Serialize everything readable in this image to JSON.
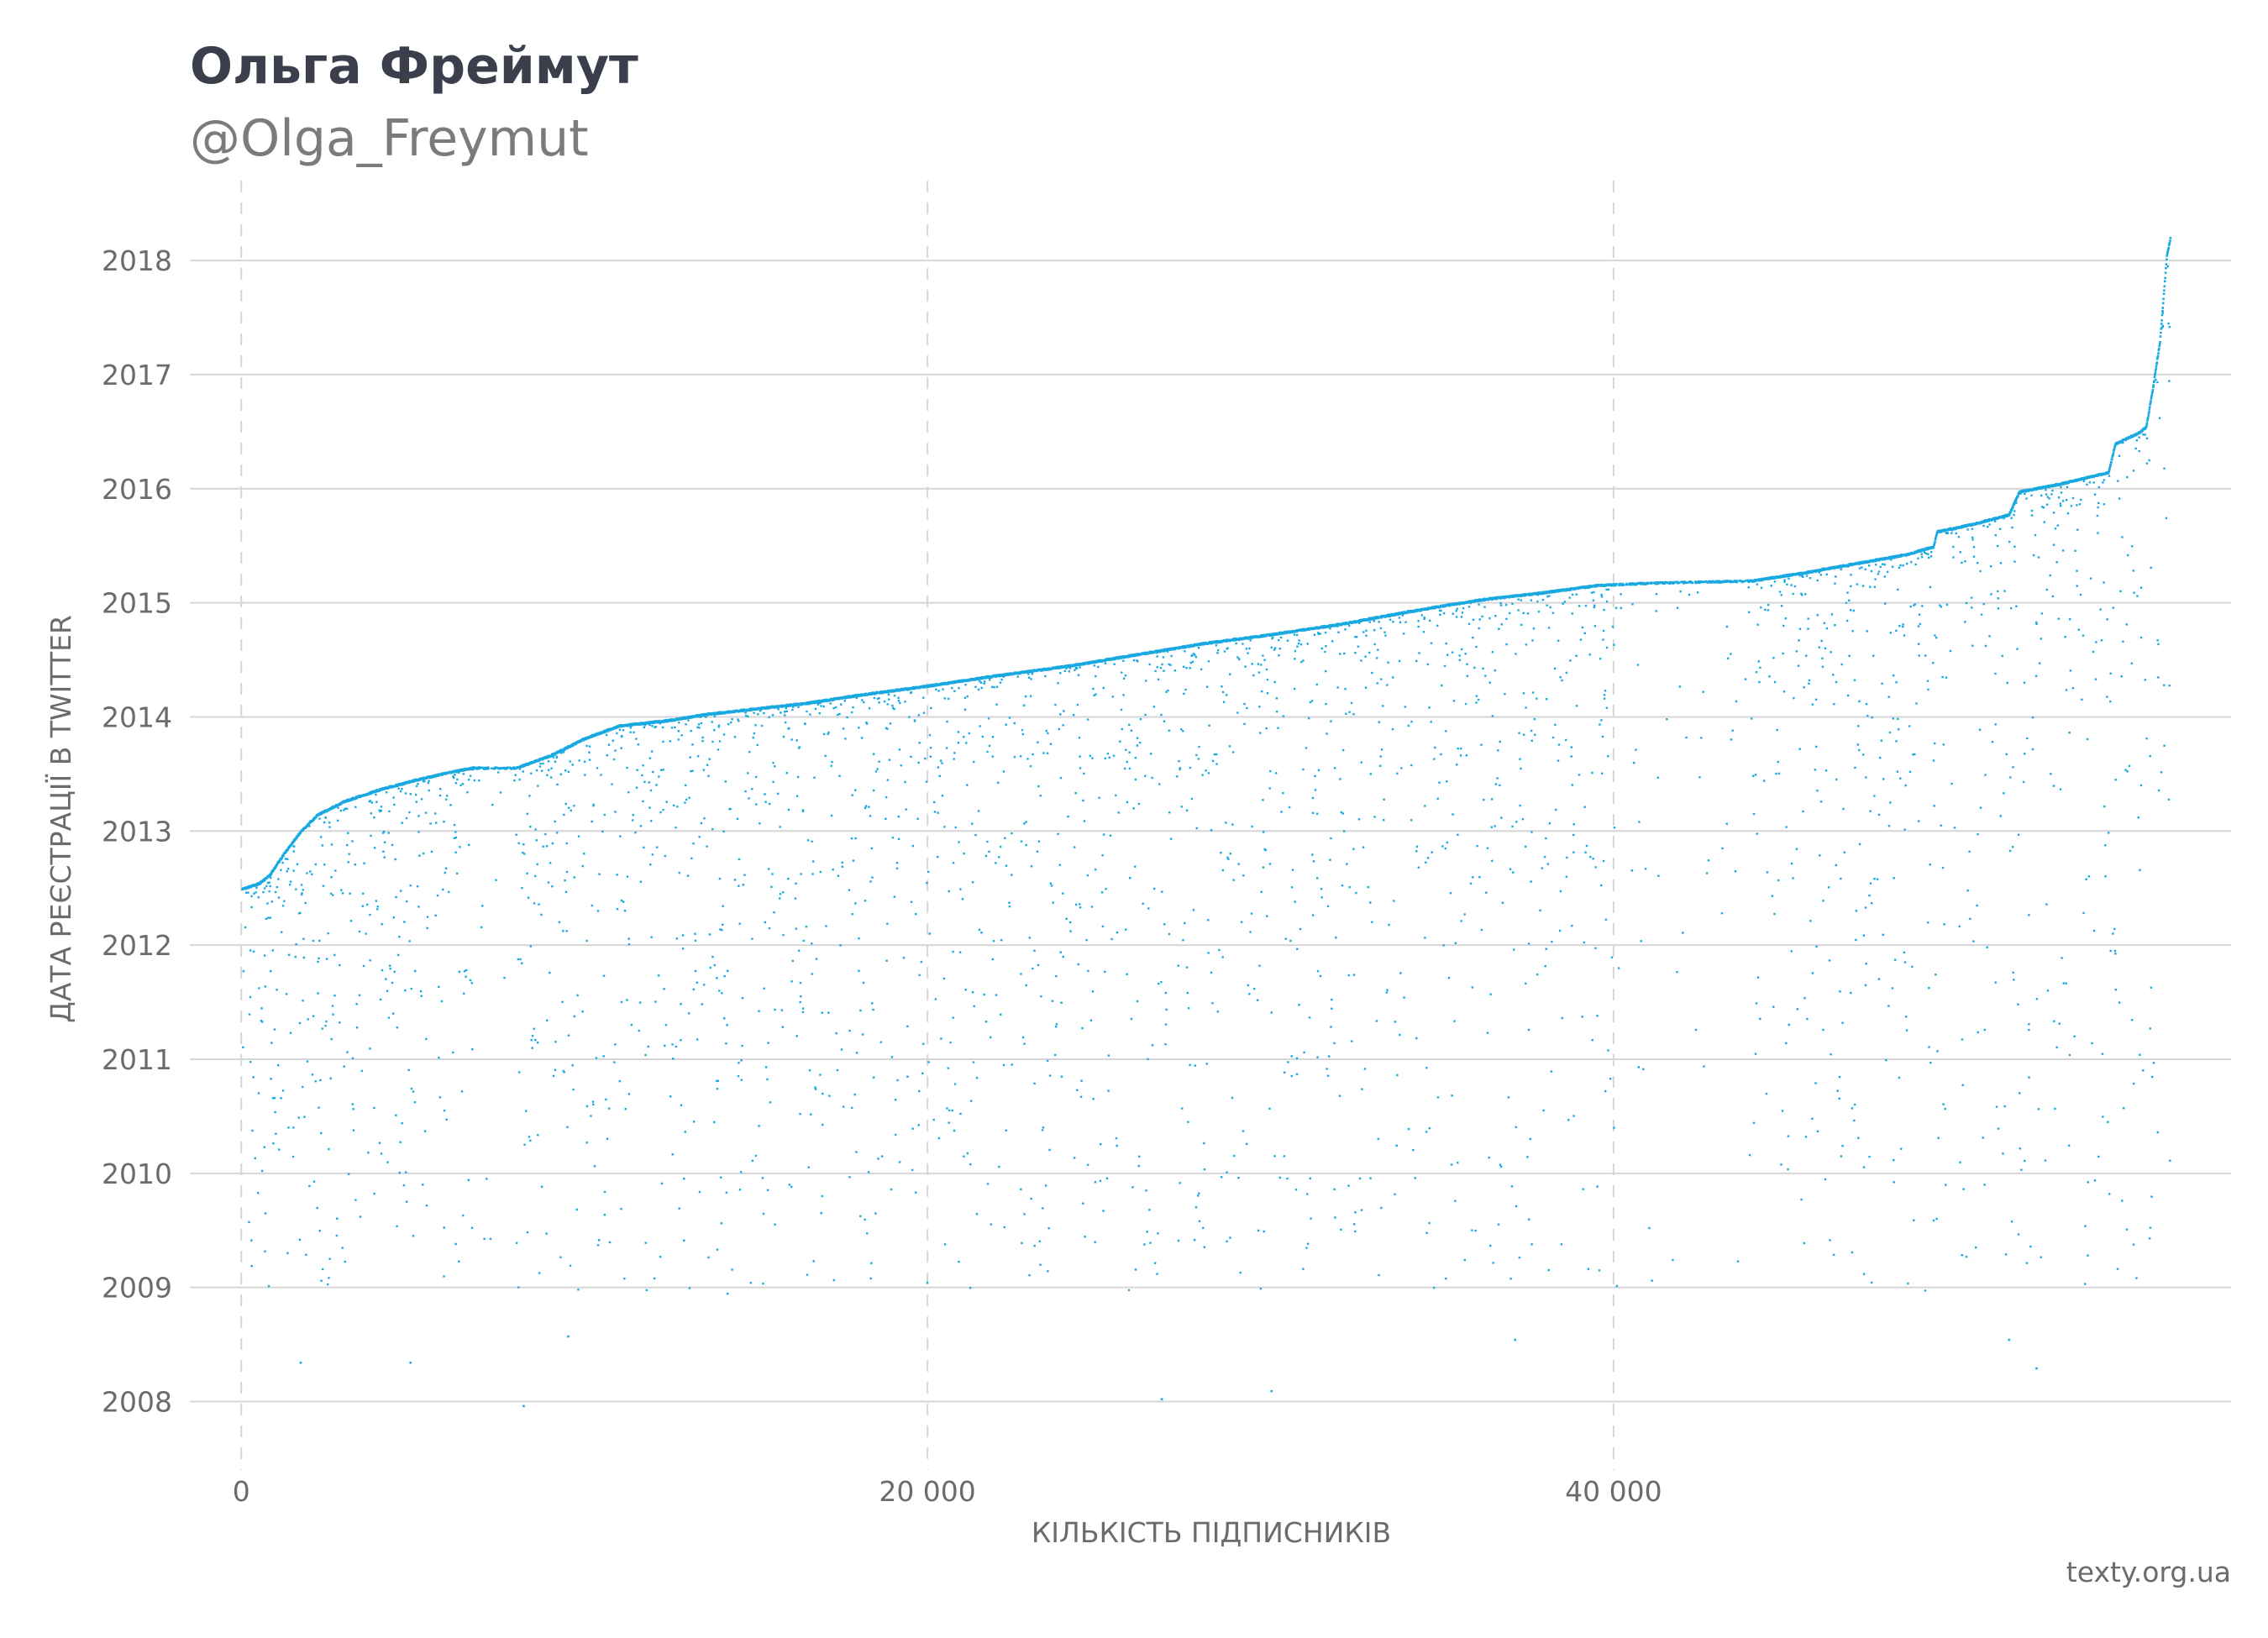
{
  "header": {
    "title": "Ольга Фреймут",
    "subtitle": "@Olga_Freymut"
  },
  "footer": {
    "caption": "texty.org.ua"
  },
  "chart_data": {
    "type": "scatter",
    "xlabel": "КІЛЬКІСТЬ ПІДПИСНИКІВ",
    "ylabel": "ДАТА РЕЄСТРАЦІЇ В TWITTER",
    "xlim": [
      -1500,
      58000
    ],
    "ylim": [
      2007.4,
      2018.7
    ],
    "x_ticks": [
      {
        "value": 0,
        "label": "0"
      },
      {
        "value": 20000,
        "label": "20 000"
      },
      {
        "value": 40000,
        "label": "40 000"
      }
    ],
    "y_ticks": [
      {
        "value": 2008,
        "label": "2008"
      },
      {
        "value": 2009,
        "label": "2009"
      },
      {
        "value": 2010,
        "label": "2010"
      },
      {
        "value": 2011,
        "label": "2011"
      },
      {
        "value": 2012,
        "label": "2012"
      },
      {
        "value": 2013,
        "label": "2013"
      },
      {
        "value": 2014,
        "label": "2014"
      },
      {
        "value": 2015,
        "label": "2015"
      },
      {
        "value": 2016,
        "label": "2016"
      },
      {
        "value": 2017,
        "label": "2017"
      },
      {
        "value": 2018,
        "label": "2018"
      }
    ],
    "grid": {
      "horizontal": "solid",
      "vertical": "dashed"
    },
    "point_color": "#1aa9e0",
    "upper_envelope": [
      [
        0,
        2012.5
      ],
      [
        500,
        2012.55
      ],
      [
        800,
        2012.62
      ],
      [
        1200,
        2012.8
      ],
      [
        1700,
        2013.0
      ],
      [
        2200,
        2013.15
      ],
      [
        3000,
        2013.27
      ],
      [
        4000,
        2013.37
      ],
      [
        5000,
        2013.45
      ],
      [
        6000,
        2013.52
      ],
      [
        6700,
        2013.56
      ],
      [
        8000,
        2013.56
      ],
      [
        9000,
        2013.67
      ],
      [
        10000,
        2013.82
      ],
      [
        11000,
        2013.93
      ],
      [
        12500,
        2013.98
      ],
      [
        13500,
        2014.03
      ],
      [
        15000,
        2014.08
      ],
      [
        16500,
        2014.13
      ],
      [
        18000,
        2014.2
      ],
      [
        20000,
        2014.28
      ],
      [
        22000,
        2014.37
      ],
      [
        24000,
        2014.45
      ],
      [
        26000,
        2014.55
      ],
      [
        28000,
        2014.65
      ],
      [
        30000,
        2014.73
      ],
      [
        32000,
        2014.82
      ],
      [
        34000,
        2014.93
      ],
      [
        36000,
        2015.03
      ],
      [
        38000,
        2015.1
      ],
      [
        39500,
        2015.16
      ],
      [
        41000,
        2015.18
      ],
      [
        42500,
        2015.19
      ],
      [
        44000,
        2015.2
      ],
      [
        45500,
        2015.27
      ],
      [
        47000,
        2015.35
      ],
      [
        48500,
        2015.43
      ],
      [
        49300,
        2015.5
      ],
      [
        49400,
        2015.63
      ],
      [
        50500,
        2015.7
      ],
      [
        51500,
        2015.78
      ],
      [
        51800,
        2015.98
      ],
      [
        53000,
        2016.05
      ],
      [
        54400,
        2016.15
      ],
      [
        54600,
        2016.4
      ],
      [
        55300,
        2016.5
      ],
      [
        55500,
        2016.55
      ],
      [
        55700,
        2016.9
      ],
      [
        55900,
        2017.3
      ],
      [
        56100,
        2018.05
      ],
      [
        56200,
        2018.2
      ]
    ],
    "sparse_ranges": [
      [
        6700,
        8000
      ],
      [
        40000,
        44000
      ]
    ],
    "outliers": [
      [
        1700,
        2008.35
      ],
      [
        4900,
        2008.35
      ],
      [
        8200,
        2007.97
      ],
      [
        9500,
        2008.58
      ],
      [
        26800,
        2008.03
      ],
      [
        30000,
        2008.1
      ],
      [
        37100,
        2008.55
      ],
      [
        52300,
        2008.3
      ],
      [
        51500,
        2008.55
      ]
    ],
    "approx_point_count": 56200
  }
}
